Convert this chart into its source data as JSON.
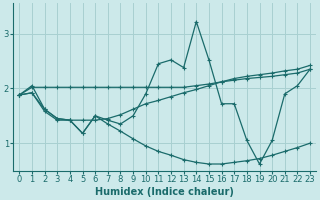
{
  "xlabel": "Humidex (Indice chaleur)",
  "bg_color": "#cce9ea",
  "line_color": "#1a6b6b",
  "grid_color": "#a8d0d1",
  "xlim": [
    -0.5,
    23.5
  ],
  "ylim": [
    0.5,
    3.55
  ],
  "yticks": [
    1,
    2,
    3
  ],
  "xticks": [
    0,
    1,
    2,
    3,
    4,
    5,
    6,
    7,
    8,
    9,
    10,
    11,
    12,
    13,
    14,
    15,
    16,
    17,
    18,
    19,
    20,
    21,
    22,
    23
  ],
  "series": [
    {
      "x": [
        0,
        1,
        2,
        3,
        4,
        5,
        6,
        7,
        8,
        9,
        10,
        11,
        12,
        13,
        14,
        15,
        16,
        17,
        18,
        19,
        20,
        21,
        22,
        23
      ],
      "y": [
        1.88,
        2.05,
        1.62,
        1.45,
        1.42,
        1.18,
        1.5,
        1.42,
        1.35,
        1.5,
        1.9,
        2.45,
        2.52,
        2.38,
        3.22,
        2.52,
        1.72,
        1.72,
        1.05,
        0.62,
        1.05,
        1.9,
        2.05,
        2.35
      ]
    },
    {
      "x": [
        0,
        1,
        2,
        3,
        4,
        5,
        6,
        7,
        8,
        9,
        10,
        11,
        12,
        13,
        14,
        15,
        16,
        17,
        18,
        19,
        20,
        21,
        22,
        23
      ],
      "y": [
        1.88,
        2.02,
        2.02,
        2.02,
        2.02,
        2.02,
        2.02,
        2.02,
        2.02,
        2.02,
        2.02,
        2.02,
        2.02,
        2.02,
        2.05,
        2.08,
        2.12,
        2.15,
        2.18,
        2.2,
        2.22,
        2.25,
        2.28,
        2.35
      ]
    },
    {
      "x": [
        0,
        1,
        2,
        3,
        4,
        5,
        6,
        7,
        8,
        9,
        10,
        11,
        12,
        13,
        14,
        15,
        16,
        17,
        18,
        19,
        20,
        21,
        22,
        23
      ],
      "y": [
        1.88,
        1.92,
        1.58,
        1.42,
        1.42,
        1.42,
        1.42,
        1.45,
        1.52,
        1.62,
        1.72,
        1.78,
        1.85,
        1.92,
        1.98,
        2.05,
        2.12,
        2.18,
        2.22,
        2.25,
        2.28,
        2.32,
        2.35,
        2.42
      ]
    },
    {
      "x": [
        0,
        1,
        2,
        3,
        4,
        5,
        6,
        7,
        8,
        9,
        10,
        11,
        12,
        13,
        14,
        15,
        16,
        17,
        18,
        19,
        20,
        21,
        22,
        23
      ],
      "y": [
        1.88,
        1.92,
        1.62,
        1.45,
        1.42,
        1.18,
        1.5,
        1.35,
        1.22,
        1.08,
        0.95,
        0.85,
        0.78,
        0.7,
        0.65,
        0.62,
        0.62,
        0.65,
        0.68,
        0.72,
        0.78,
        0.85,
        0.92,
        1.0
      ]
    }
  ]
}
